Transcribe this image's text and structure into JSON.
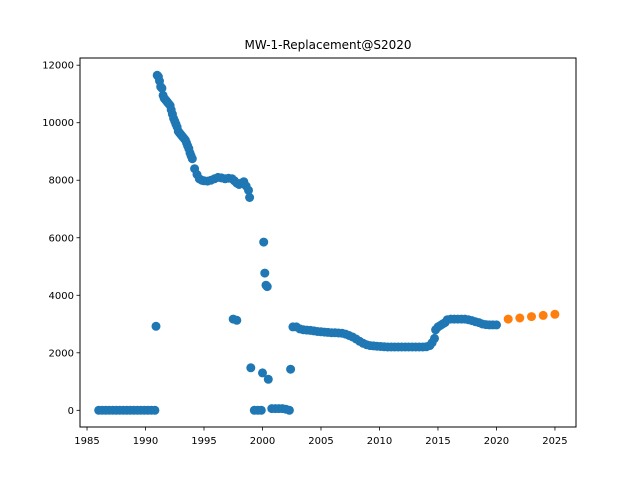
{
  "chart_data": {
    "type": "scatter",
    "title": "MW-1-Replacement@S2020",
    "xlabel": "",
    "ylabel": "",
    "xlim": [
      1984.4,
      2026.8
    ],
    "ylim": [
      -580,
      12250
    ],
    "xticks": [
      1985,
      1990,
      1995,
      2000,
      2005,
      2010,
      2015,
      2020,
      2025
    ],
    "yticks": [
      0,
      2000,
      4000,
      6000,
      8000,
      10000,
      12000
    ],
    "grid": false,
    "legend": "none",
    "series": [
      {
        "color": "#1f77b4",
        "points": [
          [
            1986.0,
            0
          ],
          [
            1986.3,
            0
          ],
          [
            1986.6,
            0
          ],
          [
            1986.9,
            0
          ],
          [
            1987.2,
            0
          ],
          [
            1987.5,
            0
          ],
          [
            1987.8,
            0
          ],
          [
            1988.1,
            0
          ],
          [
            1988.4,
            0
          ],
          [
            1988.7,
            0
          ],
          [
            1989.0,
            0
          ],
          [
            1989.3,
            0
          ],
          [
            1989.6,
            0
          ],
          [
            1989.9,
            0
          ],
          [
            1990.2,
            0
          ],
          [
            1990.5,
            0
          ],
          [
            1990.8,
            0
          ],
          [
            1990.9,
            2920
          ],
          [
            1991.0,
            11650
          ],
          [
            1991.1,
            11600
          ],
          [
            1991.2,
            11450
          ],
          [
            1991.3,
            11250
          ],
          [
            1991.4,
            11200
          ],
          [
            1991.5,
            10950
          ],
          [
            1991.6,
            10850
          ],
          [
            1991.7,
            10800
          ],
          [
            1991.8,
            10750
          ],
          [
            1991.9,
            10700
          ],
          [
            1992.0,
            10650
          ],
          [
            1992.1,
            10600
          ],
          [
            1992.2,
            10450
          ],
          [
            1992.3,
            10300
          ],
          [
            1992.4,
            10150
          ],
          [
            1992.5,
            10050
          ],
          [
            1992.6,
            9950
          ],
          [
            1992.7,
            9850
          ],
          [
            1992.8,
            9700
          ],
          [
            1992.9,
            9650
          ],
          [
            1993.0,
            9600
          ],
          [
            1993.1,
            9550
          ],
          [
            1993.2,
            9500
          ],
          [
            1993.3,
            9450
          ],
          [
            1993.4,
            9400
          ],
          [
            1993.5,
            9300
          ],
          [
            1993.6,
            9200
          ],
          [
            1993.7,
            9100
          ],
          [
            1993.8,
            8950
          ],
          [
            1993.9,
            8850
          ],
          [
            1994.0,
            8750
          ],
          [
            1994.2,
            8400
          ],
          [
            1994.4,
            8200
          ],
          [
            1994.6,
            8050
          ],
          [
            1994.8,
            8000
          ],
          [
            1995.0,
            7980
          ],
          [
            1995.3,
            7970
          ],
          [
            1995.6,
            8000
          ],
          [
            1995.9,
            8050
          ],
          [
            1996.2,
            8100
          ],
          [
            1996.5,
            8080
          ],
          [
            1996.8,
            8050
          ],
          [
            1997.1,
            8070
          ],
          [
            1997.4,
            8050
          ],
          [
            1997.6,
            7980
          ],
          [
            1997.8,
            7900
          ],
          [
            1998.0,
            7850
          ],
          [
            1998.2,
            7900
          ],
          [
            1998.4,
            7950
          ],
          [
            1998.6,
            7800
          ],
          [
            1998.8,
            7650
          ],
          [
            1998.9,
            7400
          ],
          [
            1997.5,
            3170
          ],
          [
            1997.8,
            3130
          ],
          [
            1999.0,
            1480
          ],
          [
            1999.3,
            0
          ],
          [
            1999.6,
            0
          ],
          [
            1999.9,
            0
          ],
          [
            2000.0,
            1300
          ],
          [
            2000.1,
            5850
          ],
          [
            2000.2,
            4770
          ],
          [
            2000.3,
            4350
          ],
          [
            2000.4,
            4300
          ],
          [
            2000.5,
            1080
          ],
          [
            2000.8,
            60
          ],
          [
            2001.1,
            60
          ],
          [
            2001.4,
            60
          ],
          [
            2001.7,
            60
          ],
          [
            2002.0,
            40
          ],
          [
            2002.3,
            0
          ],
          [
            2002.4,
            1430
          ],
          [
            2002.6,
            2900
          ],
          [
            2002.9,
            2900
          ],
          [
            2003.2,
            2830
          ],
          [
            2003.5,
            2800
          ],
          [
            2003.8,
            2790
          ],
          [
            2004.1,
            2780
          ],
          [
            2004.4,
            2760
          ],
          [
            2004.7,
            2740
          ],
          [
            2005.0,
            2730
          ],
          [
            2005.3,
            2720
          ],
          [
            2005.6,
            2710
          ],
          [
            2005.9,
            2700
          ],
          [
            2006.2,
            2700
          ],
          [
            2006.5,
            2690
          ],
          [
            2006.8,
            2680
          ],
          [
            2007.1,
            2650
          ],
          [
            2007.4,
            2600
          ],
          [
            2007.7,
            2550
          ],
          [
            2008.0,
            2480
          ],
          [
            2008.3,
            2400
          ],
          [
            2008.6,
            2330
          ],
          [
            2008.9,
            2280
          ],
          [
            2009.2,
            2250
          ],
          [
            2009.5,
            2240
          ],
          [
            2009.8,
            2230
          ],
          [
            2010.1,
            2220
          ],
          [
            2010.4,
            2210
          ],
          [
            2010.7,
            2200
          ],
          [
            2011.0,
            2200
          ],
          [
            2011.3,
            2200
          ],
          [
            2011.6,
            2200
          ],
          [
            2011.9,
            2200
          ],
          [
            2012.2,
            2200
          ],
          [
            2012.5,
            2200
          ],
          [
            2012.8,
            2200
          ],
          [
            2013.1,
            2200
          ],
          [
            2013.4,
            2200
          ],
          [
            2013.7,
            2200
          ],
          [
            2014.0,
            2210
          ],
          [
            2014.3,
            2250
          ],
          [
            2014.5,
            2350
          ],
          [
            2014.7,
            2500
          ],
          [
            2014.8,
            2800
          ],
          [
            2015.0,
            2900
          ],
          [
            2015.2,
            2950
          ],
          [
            2015.4,
            3000
          ],
          [
            2015.6,
            3050
          ],
          [
            2015.8,
            3150
          ],
          [
            2016.1,
            3170
          ],
          [
            2016.4,
            3170
          ],
          [
            2016.7,
            3170
          ],
          [
            2017.0,
            3170
          ],
          [
            2017.3,
            3170
          ],
          [
            2017.6,
            3150
          ],
          [
            2017.9,
            3120
          ],
          [
            2018.2,
            3080
          ],
          [
            2018.5,
            3050
          ],
          [
            2018.8,
            3000
          ],
          [
            2019.1,
            2980
          ],
          [
            2019.4,
            2970
          ],
          [
            2019.7,
            2970
          ],
          [
            2020.0,
            2970
          ]
        ]
      },
      {
        "color": "#ff7f0e",
        "points": [
          [
            2021,
            3170
          ],
          [
            2022,
            3210
          ],
          [
            2023,
            3260
          ],
          [
            2024,
            3300
          ],
          [
            2025,
            3340
          ]
        ]
      }
    ]
  }
}
